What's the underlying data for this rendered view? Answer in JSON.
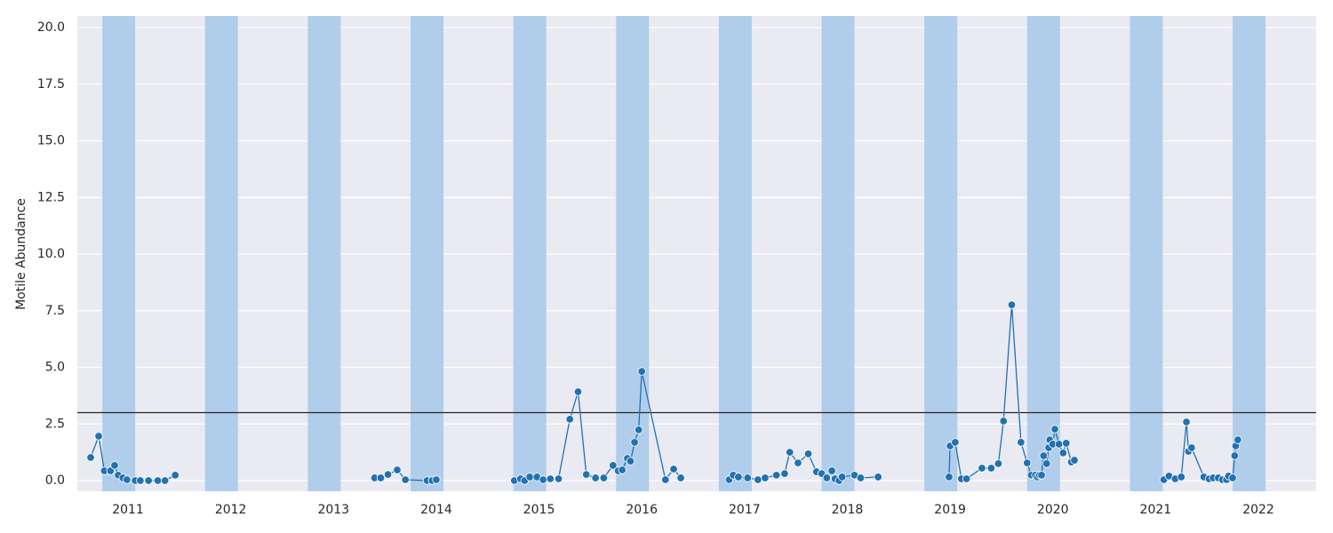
{
  "chart_data": {
    "type": "line",
    "y_label": "Motile Abundance",
    "xlim": [
      2010.507,
      2022.562
    ],
    "ylim": [
      -0.47,
      20.51
    ],
    "xticks": [
      2011,
      2012,
      2013,
      2014,
      2015,
      2016,
      2017,
      2018,
      2019,
      2020,
      2021,
      2022
    ],
    "yticks": [
      {
        "value": 0,
        "label": "0.0"
      },
      {
        "value": 2.5,
        "label": "2.5"
      },
      {
        "value": 5,
        "label": "5.0"
      },
      {
        "value": 7.5,
        "label": "7.5"
      },
      {
        "value": 10,
        "label": "10.0"
      },
      {
        "value": 12.5,
        "label": "12.5"
      },
      {
        "value": 15,
        "label": "15.0"
      },
      {
        "value": 17.5,
        "label": "17.5"
      },
      {
        "value": 20,
        "label": "20.0"
      }
    ],
    "grid": true,
    "color": "#2271b1",
    "span_color": "#b0cdeb",
    "hline": 3,
    "spans": [
      [
        2010.75,
        2011.07
      ],
      [
        2011.75,
        2012.07
      ],
      [
        2012.75,
        2013.07
      ],
      [
        2013.75,
        2014.07
      ],
      [
        2014.75,
        2015.07
      ],
      [
        2015.75,
        2016.07
      ],
      [
        2016.75,
        2017.07
      ],
      [
        2017.75,
        2018.07
      ],
      [
        2018.75,
        2019.07
      ],
      [
        2019.75,
        2020.07
      ],
      [
        2020.75,
        2021.07
      ],
      [
        2021.75,
        2022.07
      ]
    ],
    "x": [
      2010.637,
      2010.715,
      2010.77,
      2010.83,
      2010.87,
      2010.905,
      2010.95,
      2010.99,
      2011.07,
      2011.12,
      2011.2,
      2011.29,
      2011.36,
      2011.46,
      null,
      2013.4,
      2013.46,
      2013.53,
      2013.62,
      2013.7,
      2013.91,
      2013.96,
      2014.0,
      null,
      2014.76,
      2014.82,
      2014.86,
      2014.91,
      2014.98,
      2015.04,
      2015.11,
      2015.19,
      2015.3,
      2015.38,
      2015.46,
      2015.55,
      2015.63,
      2015.72,
      2015.77,
      2015.81,
      2015.86,
      2015.89,
      2015.93,
      2015.97,
      2016.0,
      2016.23,
      2016.31,
      2016.38,
      null,
      2016.85,
      2016.89,
      2016.94,
      2017.03,
      2017.13,
      2017.2,
      2017.31,
      2017.39,
      2017.44,
      2017.52,
      2017.62,
      2017.7,
      2017.75,
      2017.8,
      2017.85,
      2017.88,
      2017.92,
      2017.95,
      2018.07,
      2018.13,
      2018.3,
      null,
      2018.99,
      2019.0,
      2019.05,
      2019.11,
      2019.16,
      2019.31,
      2019.4,
      2019.47,
      2019.52,
      2019.6,
      2019.69,
      2019.75,
      2019.79,
      2019.83,
      2019.85,
      2019.87,
      2019.89,
      2019.91,
      2019.94,
      2019.96,
      2019.97,
      2020.0,
      2020.02,
      2020.06,
      2020.1,
      2020.13,
      2020.18,
      2020.21,
      null,
      2021.08,
      2021.13,
      2021.19,
      2021.25,
      2021.3,
      2021.32,
      2021.35,
      2021.47,
      2021.52,
      2021.56,
      2021.61,
      2021.65,
      2021.69,
      2021.71,
      2021.75,
      2021.77,
      2021.78,
      2021.8
    ],
    "values": [
      1.02,
      1.96,
      0.43,
      0.43,
      0.67,
      0.24,
      0.12,
      0.04,
      0,
      0,
      0,
      0,
      0,
      0.24,
      null,
      0.12,
      0.12,
      0.27,
      0.47,
      0.04,
      0,
      0,
      0.04,
      null,
      0,
      0.08,
      0,
      0.16,
      0.16,
      0.04,
      0.08,
      0.08,
      2.71,
      3.92,
      0.27,
      0.12,
      0.12,
      0.67,
      0.43,
      0.47,
      0.98,
      0.86,
      1.69,
      2.24,
      4.82,
      0.04,
      0.51,
      0.12,
      null,
      0.04,
      0.24,
      0.16,
      0.12,
      0.04,
      0.12,
      0.24,
      0.31,
      1.25,
      0.78,
      1.18,
      0.39,
      0.31,
      0.12,
      0.43,
      0.08,
      0,
      0.16,
      0.24,
      0.12,
      0.16,
      null,
      0.16,
      1.53,
      1.69,
      0.08,
      0.08,
      0.55,
      0.55,
      0.75,
      2.63,
      7.76,
      1.69,
      0.78,
      0.24,
      0.24,
      0.16,
      0.24,
      0.24,
      1.1,
      0.75,
      1.45,
      1.8,
      1.61,
      2.27,
      1.61,
      1.22,
      1.65,
      0.82,
      0.9,
      null,
      0.04,
      0.2,
      0.08,
      0.16,
      2.59,
      1.29,
      1.45,
      0.16,
      0.08,
      0.12,
      0.12,
      0.04,
      0.04,
      0.2,
      0.12,
      1.1,
      1.53,
      1.8
    ]
  }
}
